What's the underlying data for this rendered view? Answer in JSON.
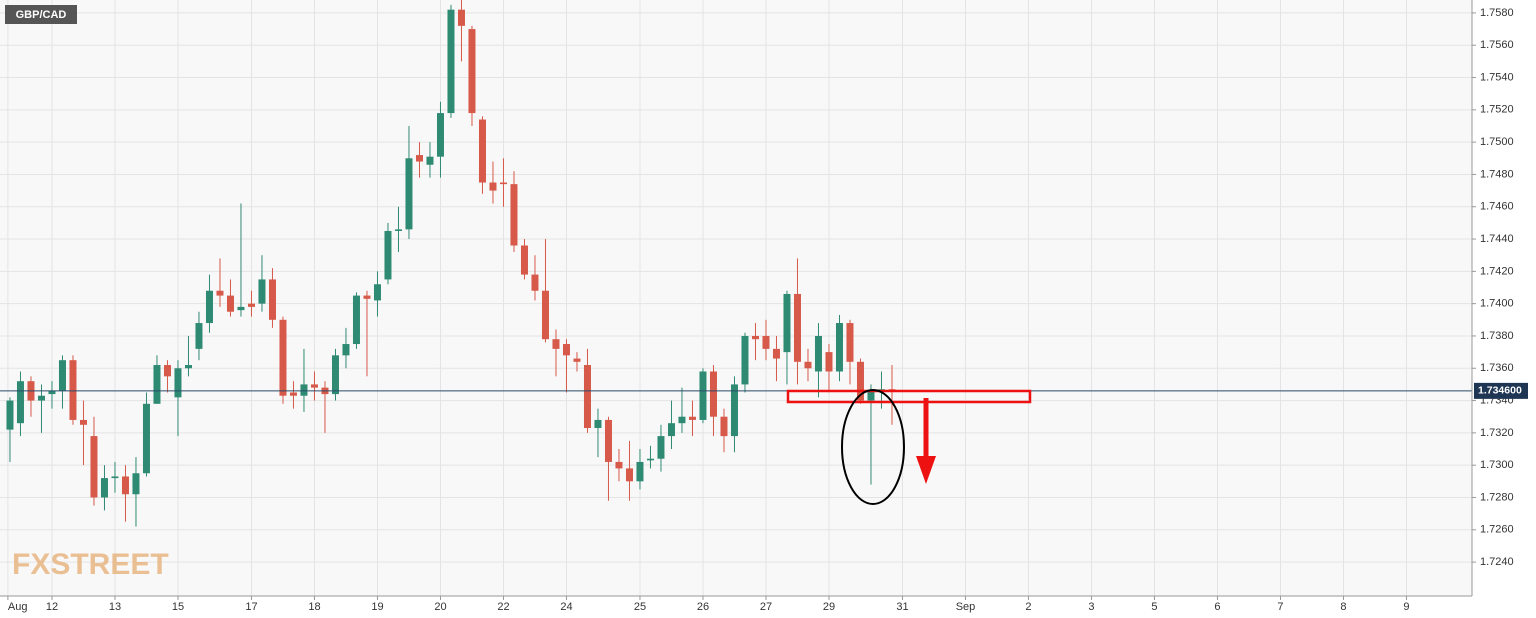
{
  "chart_data": {
    "type": "candlestick",
    "title": "GBP/CAD",
    "watermark": "FXSTREET",
    "up_color": "#2f8a74",
    "down_color": "#d6594a",
    "grid": true,
    "ylim": [
      1.7219,
      1.7588
    ],
    "yticks": [
      {
        "value": 1.724,
        "label": "1.7240"
      },
      {
        "value": 1.726,
        "label": "1.7260"
      },
      {
        "value": 1.728,
        "label": "1.7280"
      },
      {
        "value": 1.73,
        "label": "1.7300"
      },
      {
        "value": 1.732,
        "label": "1.7320"
      },
      {
        "value": 1.734,
        "label": "1.7340"
      },
      {
        "value": 1.736,
        "label": "1.7360"
      },
      {
        "value": 1.738,
        "label": "1.7380"
      },
      {
        "value": 1.74,
        "label": "1.7400"
      },
      {
        "value": 1.742,
        "label": "1.7420"
      },
      {
        "value": 1.744,
        "label": "1.7440"
      },
      {
        "value": 1.746,
        "label": "1.7460"
      },
      {
        "value": 1.748,
        "label": "1.7480"
      },
      {
        "value": 1.75,
        "label": "1.7500"
      },
      {
        "value": 1.752,
        "label": "1.7520"
      },
      {
        "value": 1.754,
        "label": "1.7540"
      },
      {
        "value": 1.756,
        "label": "1.7560"
      },
      {
        "value": 1.758,
        "label": "1.7580"
      }
    ],
    "xlim": [
      -0.95,
      139.24
    ],
    "xticks": [
      {
        "value": -0.2,
        "label": "Aug"
      },
      {
        "value": 4,
        "label": "12"
      },
      {
        "value": 10,
        "label": "13"
      },
      {
        "value": 16,
        "label": "15"
      },
      {
        "value": 23,
        "label": "17"
      },
      {
        "value": 29,
        "label": "18"
      },
      {
        "value": 35,
        "label": "19"
      },
      {
        "value": 41,
        "label": "20"
      },
      {
        "value": 47,
        "label": "22"
      },
      {
        "value": 53,
        "label": "24"
      },
      {
        "value": 60,
        "label": "25"
      },
      {
        "value": 66,
        "label": "26"
      },
      {
        "value": 72,
        "label": "27"
      },
      {
        "value": 78,
        "label": "29"
      },
      {
        "value": 85,
        "label": "31"
      },
      {
        "value": 91,
        "label": "Sep"
      },
      {
        "value": 97,
        "label": "2"
      },
      {
        "value": 103,
        "label": "3"
      },
      {
        "value": 109,
        "label": "5"
      },
      {
        "value": 115,
        "label": "6"
      },
      {
        "value": 121,
        "label": "7"
      },
      {
        "value": 127,
        "label": "8"
      },
      {
        "value": 133,
        "label": "9"
      }
    ],
    "last_price": {
      "value": 1.7346,
      "label": "1.734600"
    },
    "open": [
      1.7322,
      1.7326,
      1.7352,
      1.734,
      1.7344,
      1.7346,
      1.7365,
      1.7328,
      1.7318,
      1.728,
      1.7292,
      1.7293,
      1.7282,
      1.7295,
      1.7338,
      1.7362,
      1.7342,
      1.736,
      1.7372,
      1.7388,
      1.7408,
      1.7405,
      1.7396,
      1.74,
      1.74,
      1.7415,
      1.739,
      1.7345,
      1.7343,
      1.735,
      1.7348,
      1.7344,
      1.7368,
      1.7375,
      1.7405,
      1.7402,
      1.7415,
      1.7445,
      1.7446,
      1.7492,
      1.7486,
      1.7491,
      1.7518,
      1.7582,
      1.757,
      1.7514,
      1.7475,
      1.7475,
      1.7474,
      1.7436,
      1.7418,
      1.7408,
      1.7378,
      1.7375,
      1.7366,
      1.7362,
      1.7323,
      1.7328,
      1.7302,
      1.7298,
      1.729,
      1.7303,
      1.7304,
      1.7318,
      1.7326,
      1.733,
      1.7328,
      1.7358,
      1.733,
      1.7318,
      1.735,
      1.738,
      1.738,
      1.7372,
      1.737,
      1.7406,
      1.7364,
      1.7358,
      1.737,
      1.7358,
      1.7388,
      1.7364,
      1.734,
      1.7346,
      1.7347
    ],
    "high": [
      1.7342,
      1.7358,
      1.7355,
      1.735,
      1.7352,
      1.7368,
      1.7368,
      1.734,
      1.733,
      1.73,
      1.7302,
      1.73,
      1.7305,
      1.7345,
      1.7368,
      1.7365,
      1.7365,
      1.738,
      1.7395,
      1.7418,
      1.7428,
      1.7415,
      1.7462,
      1.7408,
      1.743,
      1.7422,
      1.7392,
      1.7352,
      1.7372,
      1.7358,
      1.7352,
      1.7372,
      1.7385,
      1.7407,
      1.7408,
      1.742,
      1.745,
      1.746,
      1.751,
      1.75,
      1.75,
      1.7525,
      1.7585,
      1.7588,
      1.7572,
      1.7516,
      1.7488,
      1.749,
      1.7482,
      1.744,
      1.743,
      1.744,
      1.7384,
      1.7378,
      1.737,
      1.7372,
      1.7335,
      1.733,
      1.731,
      1.7315,
      1.731,
      1.7312,
      1.7325,
      1.734,
      1.7348,
      1.734,
      1.736,
      1.7362,
      1.7335,
      1.7355,
      1.7382,
      1.7388,
      1.739,
      1.738,
      1.7408,
      1.7428,
      1.7372,
      1.7388,
      1.7375,
      1.7393,
      1.739,
      1.7366,
      1.735,
      1.7358,
      1.7362
    ],
    "low": [
      1.7302,
      1.7318,
      1.733,
      1.732,
      1.7335,
      1.7335,
      1.7325,
      1.73,
      1.7275,
      1.7272,
      1.7283,
      1.7265,
      1.7262,
      1.7293,
      1.7338,
      1.7345,
      1.7318,
      1.7355,
      1.7365,
      1.7382,
      1.7398,
      1.7392,
      1.7392,
      1.7392,
      1.7395,
      1.7385,
      1.7338,
      1.7335,
      1.7333,
      1.734,
      1.732,
      1.734,
      1.736,
      1.7372,
      1.7355,
      1.7392,
      1.7412,
      1.7432,
      1.744,
      1.7478,
      1.7478,
      1.7478,
      1.7515,
      1.755,
      1.751,
      1.7468,
      1.7462,
      1.746,
      1.7432,
      1.7415,
      1.7402,
      1.7376,
      1.7355,
      1.7345,
      1.7358,
      1.732,
      1.7305,
      1.7278,
      1.729,
      1.7278,
      1.7285,
      1.7298,
      1.7296,
      1.731,
      1.732,
      1.7318,
      1.7326,
      1.7318,
      1.7308,
      1.7308,
      1.7345,
      1.7365,
      1.7365,
      1.7352,
      1.735,
      1.735,
      1.7352,
      1.7342,
      1.7345,
      1.7352,
      1.735,
      1.7338,
      1.7288,
      1.7335,
      1.7325
    ],
    "close": [
      1.734,
      1.7352,
      1.734,
      1.7343,
      1.7346,
      1.7365,
      1.7328,
      1.7325,
      1.728,
      1.7292,
      1.7293,
      1.7282,
      1.7295,
      1.7338,
      1.7362,
      1.7355,
      1.736,
      1.7362,
      1.7388,
      1.7408,
      1.7405,
      1.7395,
      1.7398,
      1.7398,
      1.7415,
      1.739,
      1.7343,
      1.7343,
      1.735,
      1.7348,
      1.7344,
      1.7368,
      1.7375,
      1.7405,
      1.7403,
      1.7412,
      1.7445,
      1.7446,
      1.749,
      1.7488,
      1.7491,
      1.7518,
      1.7582,
      1.7572,
      1.7518,
      1.7475,
      1.747,
      1.7474,
      1.7436,
      1.7418,
      1.7408,
      1.7378,
      1.7372,
      1.7368,
      1.7364,
      1.7323,
      1.7328,
      1.7302,
      1.7298,
      1.729,
      1.7302,
      1.7304,
      1.7318,
      1.7326,
      1.733,
      1.7328,
      1.7358,
      1.733,
      1.7318,
      1.735,
      1.738,
      1.7378,
      1.7372,
      1.7366,
      1.7406,
      1.7364,
      1.736,
      1.738,
      1.7358,
      1.7388,
      1.7364,
      1.734,
      1.7346,
      1.7347,
      1.7346
    ]
  }
}
